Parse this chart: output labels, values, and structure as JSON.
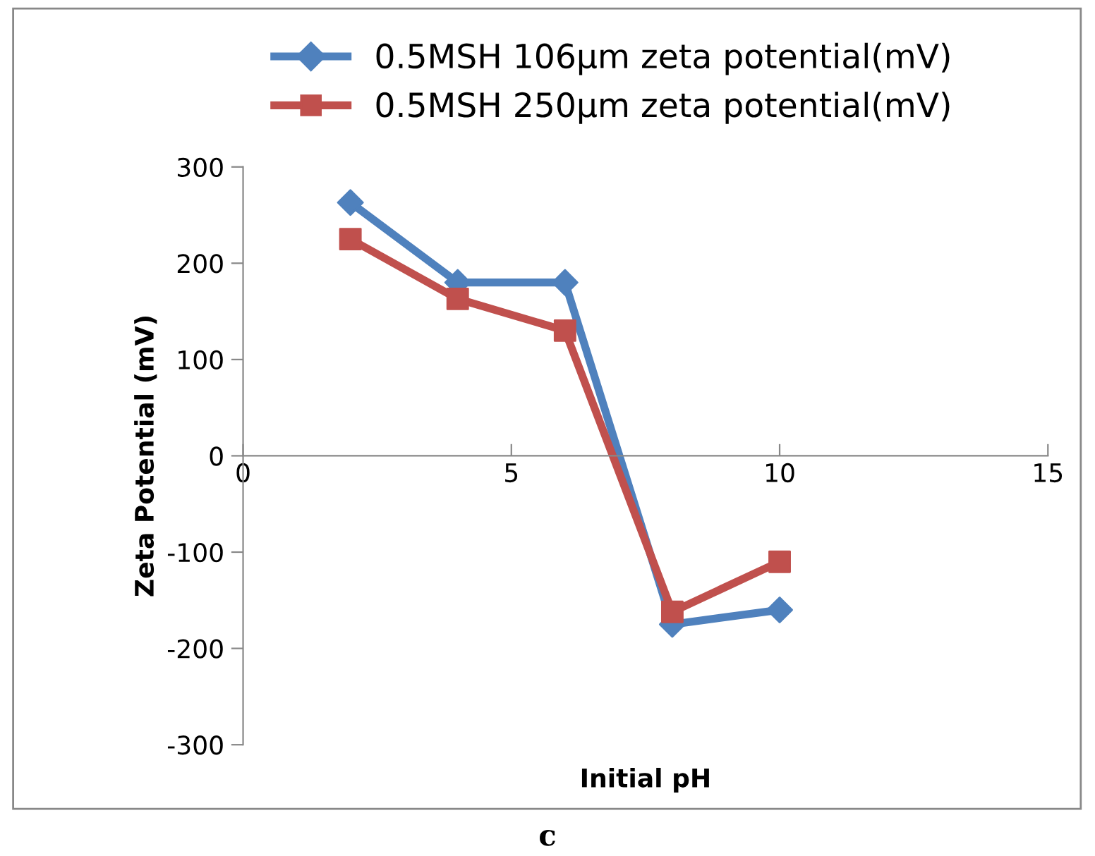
{
  "chart_data": {
    "type": "line",
    "xlabel": "Initial pH",
    "ylabel": "Zeta Potential (mV)",
    "x": [
      2,
      4,
      6,
      8,
      10
    ],
    "series": [
      {
        "name": "0.5MSH 106µm zeta potential(mV)",
        "color": "#4f81bd",
        "marker": "diamond",
        "values": [
          263,
          180,
          180,
          -175,
          -160
        ]
      },
      {
        "name": "0.5MSH 250µm zeta potential(mV)",
        "color": "#c0504d",
        "marker": "square",
        "values": [
          225,
          163,
          130,
          -162,
          -110
        ]
      }
    ],
    "xlim": [
      0,
      15
    ],
    "xticks": [
      0,
      5,
      10,
      15
    ],
    "ylim": [
      -300,
      300
    ],
    "yticks": [
      -300,
      -200,
      -100,
      0,
      100,
      200,
      300
    ],
    "grid": false,
    "legend": "top",
    "line_style": "solid",
    "annotations": [
      "c"
    ]
  }
}
